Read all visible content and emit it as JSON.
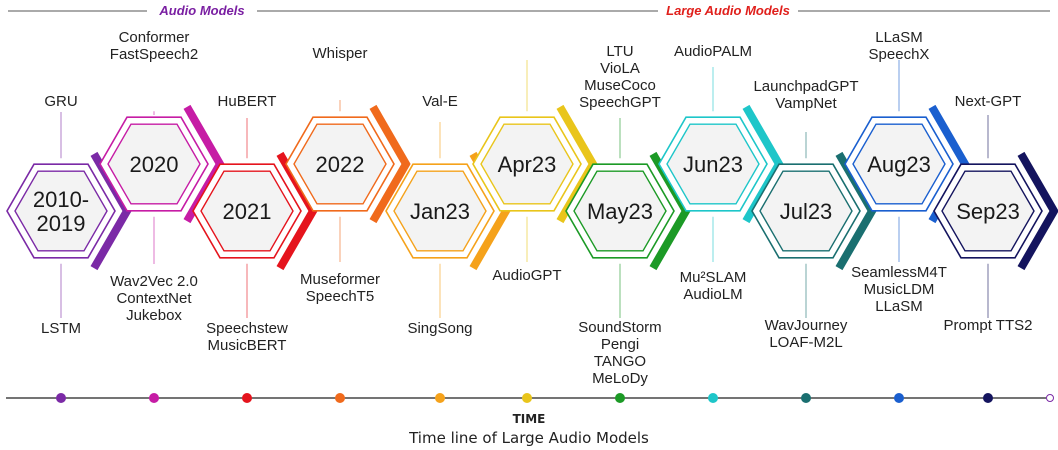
{
  "sections": {
    "audio_models": {
      "label": "Audio Models",
      "color": "#7a1fa2"
    },
    "large_audio_models": {
      "label": "Large Audio Models",
      "color": "#e0201c"
    }
  },
  "axis_label": "TIME",
  "caption": "Time line of Large Audio Models",
  "milestones": [
    {
      "period": [
        "2010-",
        "2019"
      ],
      "color": "#7b2aa6",
      "top": [
        "GRU"
      ],
      "bottom": [
        "LSTM"
      ]
    },
    {
      "period": [
        "2020"
      ],
      "color": "#c61ca5",
      "top": [
        "Conformer",
        "FastSpeech2"
      ],
      "bottom": [
        "Wav2Vec 2.0",
        "ContextNet",
        "Jukebox"
      ]
    },
    {
      "period": [
        "2021"
      ],
      "color": "#e5141d",
      "top": [
        "HuBERT"
      ],
      "bottom": [
        "Speechstew",
        "MusicBERT"
      ]
    },
    {
      "period": [
        "2022"
      ],
      "color": "#f06a1c",
      "top": [
        "Whisper"
      ],
      "bottom": [
        "Museformer",
        "SpeechT5"
      ]
    },
    {
      "period": [
        "Jan23"
      ],
      "color": "#f5a21b",
      "top": [
        "Val-E"
      ],
      "bottom": [
        "SingSong"
      ]
    },
    {
      "period": [
        "Apr23"
      ],
      "color": "#e9c51b",
      "top": [],
      "bottom": [
        "AudioGPT"
      ]
    },
    {
      "period": [
        "May23"
      ],
      "color": "#1c9a26",
      "top": [
        "LTU",
        "VioLA",
        "MuseCoco",
        "SpeechGPT"
      ],
      "bottom": [
        "SoundStorm",
        "Pengi",
        "TANGO",
        "MeLoDy"
      ]
    },
    {
      "period": [
        "Jun23"
      ],
      "color": "#1ec6c9",
      "top": [
        "AudioPALM"
      ],
      "bottom": [
        "Mu²SLAM",
        "AudioLM"
      ]
    },
    {
      "period": [
        "Jul23"
      ],
      "color": "#1a6f70",
      "top": [
        "LaunchpadGPT",
        "VampNet"
      ],
      "bottom": [
        "WavJourney",
        "LOAF-M2L"
      ]
    },
    {
      "period": [
        "Aug23"
      ],
      "color": "#1a5fcf",
      "top": [
        "LLaSM",
        "SpeechX"
      ],
      "bottom": [
        "SeamlessM4T",
        "MusicLDM",
        "LLaSM"
      ]
    },
    {
      "period": [
        "Sep23"
      ],
      "color": "#14145e",
      "top": [
        "Next-GPT"
      ],
      "bottom": [
        "Prompt TTS2"
      ]
    }
  ]
}
